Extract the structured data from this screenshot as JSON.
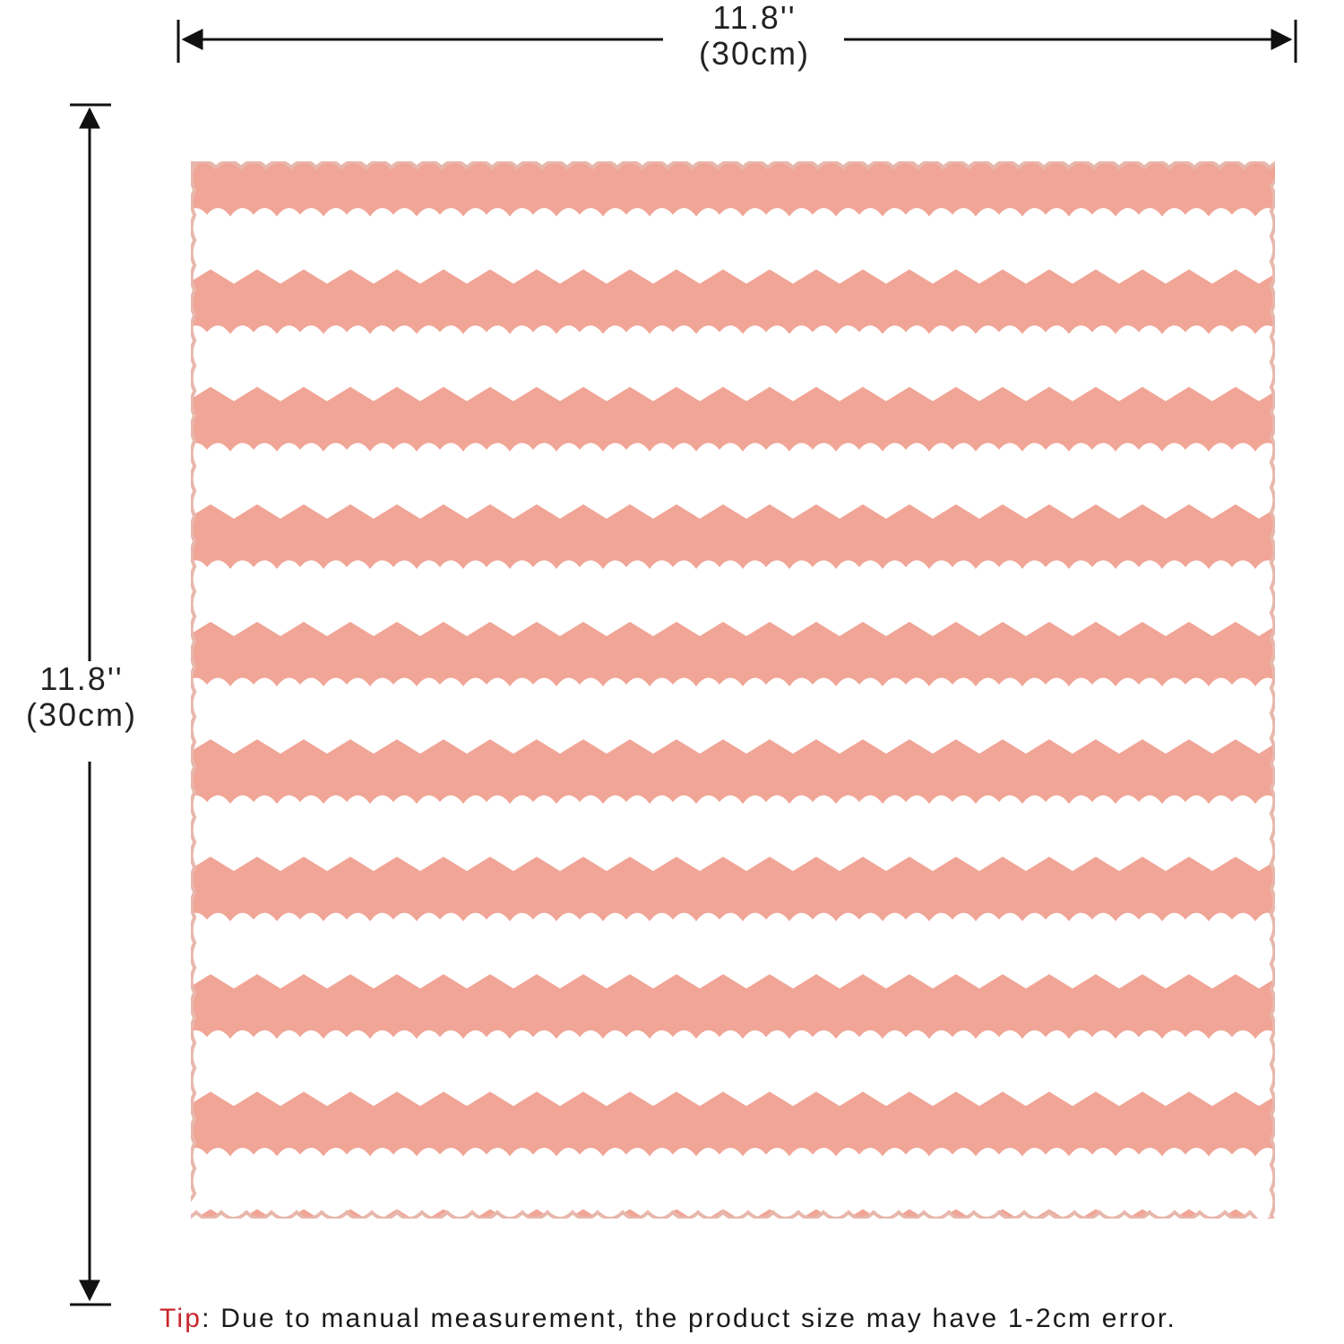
{
  "dimensions": {
    "width_inches": "11.8''",
    "width_cm": "(30cm)",
    "height_inches": "11.8''",
    "height_cm": "(30cm)"
  },
  "tip": {
    "label": "Tip",
    "text": ": Due to manual measurement, the product size may have 1-2cm error."
  },
  "product": {
    "name": "towel-image",
    "colors": {
      "pink": "#f0a596",
      "white": "#ffffff",
      "edge": "#e8b7ac"
    },
    "stripe_pairs": 9
  },
  "colors": {
    "tip_accent": "#c8262c",
    "lines": "#111111"
  }
}
